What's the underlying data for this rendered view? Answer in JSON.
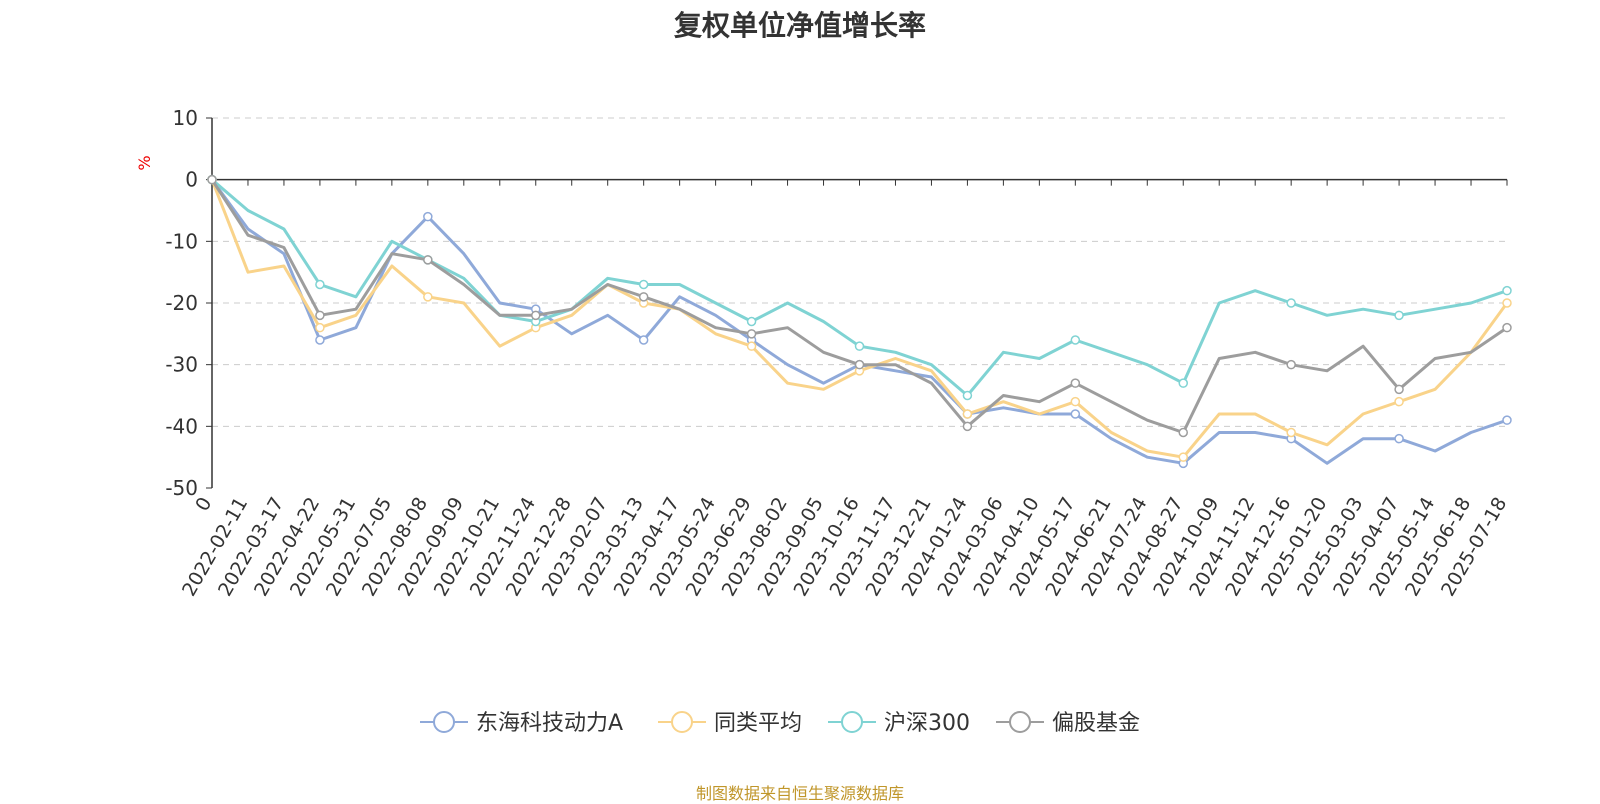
{
  "chart_data": {
    "type": "line",
    "title": "复权单位净值增长率",
    "ylabel": "%",
    "ylim": [
      -50,
      10
    ],
    "yticks": [
      10,
      0,
      -10,
      -20,
      -30,
      -40,
      -50
    ],
    "grid": true,
    "legend_position": "bottom-center",
    "x_tick_labels": [
      "0",
      "2022-02-11",
      "2022-03-17",
      "2022-04-22",
      "2022-05-31",
      "2022-07-05",
      "2022-08-08",
      "2022-09-09",
      "2022-10-21",
      "2022-11-24",
      "2022-12-28",
      "2023-02-07",
      "2023-03-13",
      "2023-04-17",
      "2023-05-24",
      "2023-06-29",
      "2023-08-02",
      "2023-09-05",
      "2023-10-16",
      "2023-11-17",
      "2023-12-21",
      "2024-01-24",
      "2024-03-06",
      "2024-04-10",
      "2024-05-17",
      "2024-06-21",
      "2024-07-24",
      "2024-08-27",
      "2024-10-09",
      "2024-11-12",
      "2024-12-16",
      "2025-01-20",
      "2025-03-03",
      "2025-04-07",
      "2025-05-14",
      "2025-06-18",
      "2025-07-18"
    ],
    "series": [
      {
        "name": "东海科技动力A",
        "color": "#8fa9d9",
        "values": [
          0,
          -8,
          -12,
          -26,
          -24,
          -12,
          -6,
          -12,
          -20,
          -21,
          -25,
          -22,
          -26,
          -19,
          -22,
          -26,
          -30,
          -33,
          -30,
          -31,
          -32,
          -38,
          -37,
          -38,
          -38,
          -42,
          -45,
          -46,
          -41,
          -41,
          -42,
          -46,
          -42,
          -42,
          -44,
          -41,
          -39
        ]
      },
      {
        "name": "同类平均",
        "color": "#f9d38a",
        "values": [
          0,
          -15,
          -14,
          -24,
          -22,
          -14,
          -19,
          -20,
          -27,
          -24,
          -22,
          -17,
          -20,
          -21,
          -25,
          -27,
          -33,
          -34,
          -31,
          -29,
          -31,
          -38,
          -36,
          -38,
          -36,
          -41,
          -44,
          -45,
          -38,
          -38,
          -41,
          -43,
          -38,
          -36,
          -34,
          -28,
          -20
        ]
      },
      {
        "name": "沪深300",
        "color": "#7fd3d3",
        "values": [
          0,
          -5,
          -8,
          -17,
          -19,
          -10,
          -13,
          -16,
          -22,
          -23,
          -21,
          -16,
          -17,
          -17,
          -20,
          -23,
          -20,
          -23,
          -27,
          -28,
          -30,
          -35,
          -28,
          -29,
          -26,
          -28,
          -30,
          -33,
          -20,
          -18,
          -20,
          -22,
          -21,
          -22,
          -21,
          -20,
          -18
        ]
      },
      {
        "name": "偏股基金",
        "color": "#9d9d9d",
        "values": [
          0,
          -9,
          -11,
          -22,
          -21,
          -12,
          -13,
          -17,
          -22,
          -22,
          -21,
          -17,
          -19,
          -21,
          -24,
          -25,
          -24,
          -28,
          -30,
          -30,
          -33,
          -40,
          -35,
          -36,
          -33,
          -36,
          -39,
          -41,
          -29,
          -28,
          -30,
          -31,
          -27,
          -34,
          -29,
          -28,
          -24
        ]
      }
    ]
  },
  "source_note": "制图数据来自恒生聚源数据库"
}
